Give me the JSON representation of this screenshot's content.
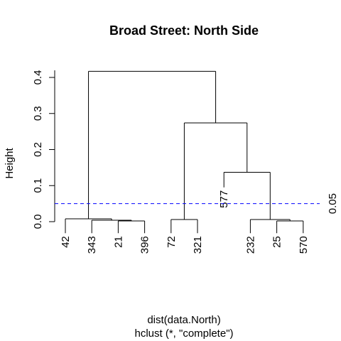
{
  "chart_data": {
    "type": "dendrogram",
    "title": "Broad Street: North Side",
    "ylabel": "Height",
    "xlabel": "dist(data.North)",
    "sub": "hclust (*, \"complete\")",
    "ylim": [
      0,
      0.42
    ],
    "yticks": [
      "0.0",
      "0.1",
      "0.2",
      "0.3",
      "0.4"
    ],
    "ytick_values": [
      0,
      0.1,
      0.2,
      0.3,
      0.4
    ],
    "leaves": [
      "42",
      "343",
      "21",
      "396",
      "72",
      "321",
      "577",
      "232",
      "25",
      "570"
    ],
    "leaf_heights": [
      -0.032,
      -0.032,
      -0.032,
      -0.032,
      -0.032,
      -0.032,
      0.095,
      -0.032,
      -0.032,
      -0.032
    ],
    "merges": [
      {
        "a": "21",
        "b": "396",
        "height": 0.002
      },
      {
        "a": "343",
        "b": "21|396",
        "height": 0.004
      },
      {
        "a": "42",
        "b": "343|21|396",
        "height": 0.008
      },
      {
        "a": "72",
        "b": "321",
        "height": 0.006
      },
      {
        "a": "25",
        "b": "570",
        "height": 0.002
      },
      {
        "a": "232",
        "b": "25|570",
        "height": 0.006
      },
      {
        "a": "577",
        "b": "232|25|570",
        "height": 0.137
      },
      {
        "a": "72|321",
        "b": "577|232|25|570",
        "height": 0.274
      },
      {
        "a": "42|343|21|396",
        "b": "72|321|577|232|25|570",
        "height": 0.417
      }
    ],
    "cutoff": {
      "value": 0.05,
      "label": "0.05",
      "color": "#0000ff",
      "style": "dashed"
    },
    "grid": false
  }
}
